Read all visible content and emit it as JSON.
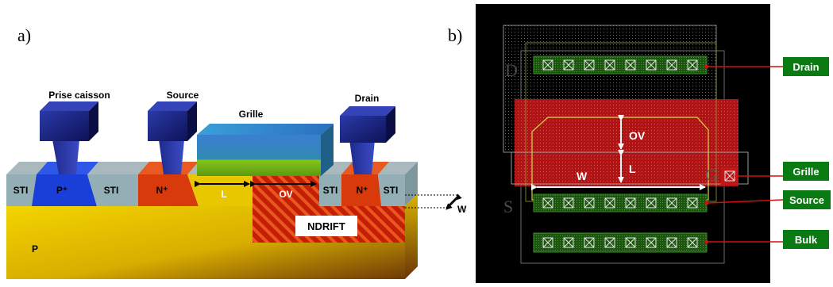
{
  "panel_a": {
    "tag": "a)",
    "labels": {
      "prise_caisson": "Prise caisson",
      "source": "Source",
      "grille": "Grille",
      "drain": "Drain",
      "sti_1": "STI",
      "p_plus": "P⁺",
      "sti_2": "STI",
      "n_plus_1": "N⁺",
      "l": "L",
      "ov": "OV",
      "sti_3": "STI",
      "n_plus_2": "N⁺",
      "sti_4": "STI",
      "w": "W",
      "ndrift": "NDRIFT",
      "p": "P"
    }
  },
  "panel_b": {
    "tag": "b)",
    "labels": {
      "d": "D",
      "s": "S",
      "g": "G",
      "ov": "OV",
      "l": "L",
      "w": "W"
    },
    "callouts": {
      "drain": "Drain",
      "grille": "Grille",
      "source": "Source",
      "bulk": "Bulk"
    }
  },
  "colors": {
    "substrate": "#e8c600",
    "sti": "#93aeb4",
    "p_plus": "#1a3fd8",
    "n_plus": "#d93a0c",
    "contact": "#1a1e8a",
    "ndrift": "#c8270a",
    "gate_top": "#2f86c9",
    "gate_bottom": "#78b81e",
    "layout_bg": "#000000",
    "active_green": "#1f5a14",
    "poly_red": "#b01616",
    "callout_green": "#0a7a12",
    "callout_line": "#d11010"
  }
}
